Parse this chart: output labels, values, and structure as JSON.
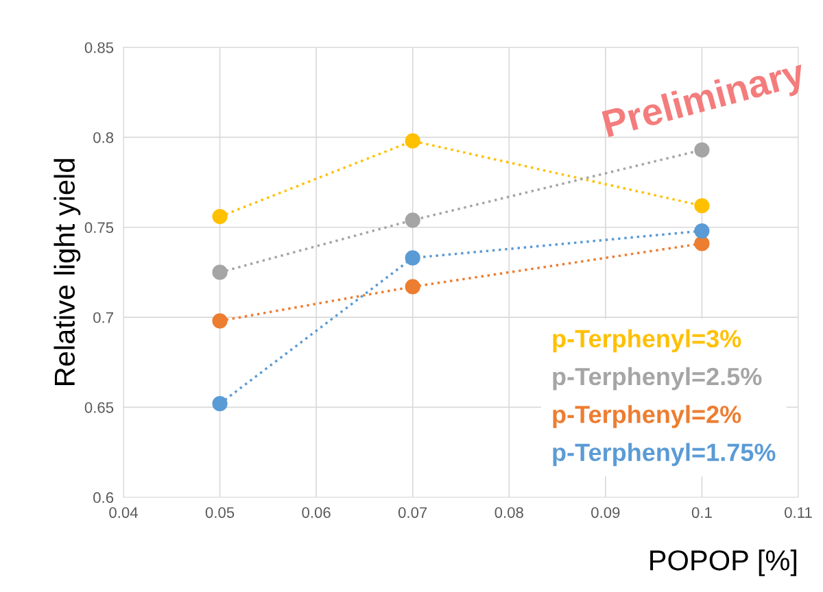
{
  "chart_data": {
    "type": "line",
    "xlabel": "POPOP [%]",
    "ylabel": "Relative light yield",
    "x": [
      0.05,
      0.07,
      0.1
    ],
    "series": [
      {
        "name": "p-Terphenyl=3%",
        "color": "#ffc000",
        "values": [
          0.756,
          0.798,
          0.762
        ]
      },
      {
        "name": "p-Terphenyl=2.5%",
        "color": "#a5a5a5",
        "values": [
          0.725,
          0.754,
          0.793
        ]
      },
      {
        "name": "p-Terphenyl=2%",
        "color": "#ed7d31",
        "values": [
          0.698,
          0.717,
          0.741
        ]
      },
      {
        "name": "p-Terphenyl=1.75%",
        "color": "#5b9bd5",
        "values": [
          0.652,
          0.733,
          0.748
        ]
      }
    ],
    "xlim": [
      0.04,
      0.11
    ],
    "xticks": [
      0.04,
      0.05,
      0.06,
      0.07,
      0.08,
      0.09,
      0.1,
      0.11
    ],
    "ylim": [
      0.6,
      0.85
    ],
    "yticks": [
      0.6,
      0.65,
      0.7,
      0.75,
      0.8,
      0.85
    ],
    "annotations": [
      "Preliminary"
    ],
    "grid": true,
    "legend": "bottom right",
    "marker": "circle",
    "line_style": "dotted"
  }
}
